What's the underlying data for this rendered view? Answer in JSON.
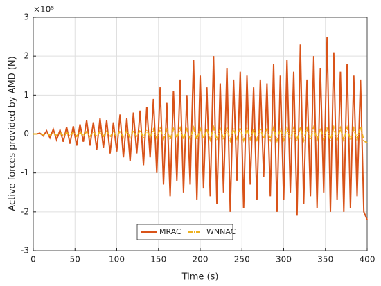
{
  "chart_data": {
    "type": "line",
    "xlabel": "Time (s)",
    "ylabel": "Active forces provided by AMD (N)",
    "y_multiplier": "×10⁵",
    "x": [
      0,
      4,
      8,
      12,
      16,
      20,
      24,
      28,
      32,
      36,
      40,
      44,
      48,
      52,
      56,
      60,
      64,
      68,
      72,
      76,
      80,
      84,
      88,
      92,
      96,
      100,
      104,
      108,
      112,
      116,
      120,
      124,
      128,
      132,
      136,
      140,
      144,
      148,
      152,
      156,
      160,
      164,
      168,
      172,
      176,
      180,
      184,
      188,
      192,
      196,
      200,
      204,
      208,
      212,
      216,
      220,
      224,
      228,
      232,
      236,
      240,
      244,
      248,
      252,
      256,
      260,
      264,
      268,
      272,
      276,
      280,
      284,
      288,
      292,
      296,
      300,
      304,
      308,
      312,
      316,
      320,
      324,
      328,
      332,
      336,
      340,
      344,
      348,
      352,
      356,
      360,
      364,
      368,
      372,
      376,
      380,
      384,
      388,
      392,
      396,
      400
    ],
    "series": [
      {
        "name": "MRAC",
        "color": "#d95319",
        "dash": "none",
        "values": [
          0,
          0,
          0.02,
          -0.05,
          0.08,
          -0.1,
          0.12,
          -0.15,
          0.1,
          -0.2,
          0.18,
          -0.25,
          0.2,
          -0.3,
          0.25,
          -0.2,
          0.35,
          -0.3,
          0.3,
          -0.4,
          0.4,
          -0.35,
          0.35,
          -0.5,
          0.3,
          -0.45,
          0.5,
          -0.6,
          0.4,
          -0.7,
          0.55,
          -0.5,
          0.6,
          -0.8,
          0.7,
          -0.6,
          0.9,
          -1.0,
          1.2,
          -1.3,
          0.8,
          -1.6,
          1.1,
          -1.2,
          1.4,
          -1.5,
          1.0,
          -1.3,
          1.9,
          -1.7,
          1.5,
          -1.4,
          1.2,
          -1.6,
          2.0,
          -1.8,
          1.3,
          -1.5,
          1.7,
          -2.0,
          1.4,
          -1.2,
          1.6,
          -1.9,
          1.5,
          -1.3,
          1.2,
          -1.7,
          1.4,
          -1.1,
          1.3,
          -1.6,
          1.8,
          -2.0,
          1.5,
          -1.7,
          1.9,
          -1.5,
          1.6,
          -2.1,
          2.3,
          -1.8,
          1.4,
          -1.6,
          2.0,
          -1.9,
          1.7,
          -1.5,
          2.5,
          -2.0,
          2.1,
          -1.7,
          1.6,
          -2.0,
          1.8,
          -1.9,
          1.5,
          -1.6,
          1.4,
          -2.0,
          -2.2
        ]
      },
      {
        "name": "WNNAC",
        "color": "#edb120",
        "dash": "6 2 1 2",
        "values": [
          0,
          0,
          0.01,
          -0.02,
          0.02,
          -0.03,
          0.03,
          -0.04,
          0.03,
          -0.05,
          0.04,
          -0.05,
          0.05,
          -0.06,
          0.05,
          -0.05,
          0.06,
          -0.06,
          0.06,
          -0.07,
          0.07,
          -0.06,
          0.07,
          -0.08,
          0.06,
          -0.08,
          0.08,
          -0.09,
          0.08,
          -0.1,
          0.09,
          -0.08,
          0.1,
          -0.1,
          0.1,
          -0.09,
          0.12,
          -0.12,
          0.14,
          -0.13,
          0.11,
          -0.15,
          0.13,
          -0.12,
          0.15,
          -0.14,
          0.12,
          -0.13,
          0.16,
          -0.15,
          0.14,
          -0.13,
          0.12,
          -0.15,
          0.17,
          -0.16,
          0.13,
          -0.14,
          0.15,
          -0.17,
          0.14,
          -0.12,
          0.15,
          -0.16,
          0.14,
          -0.13,
          0.12,
          -0.15,
          0.14,
          -0.12,
          0.13,
          -0.15,
          0.16,
          -0.17,
          0.14,
          -0.15,
          0.16,
          -0.14,
          0.15,
          -0.17,
          0.18,
          -0.16,
          0.14,
          -0.15,
          0.17,
          -0.16,
          0.15,
          -0.14,
          0.18,
          -0.17,
          0.17,
          -0.15,
          0.15,
          -0.17,
          0.16,
          -0.16,
          0.14,
          -0.15,
          0.2,
          -0.18,
          -0.22
        ]
      }
    ],
    "xlim": [
      0,
      400
    ],
    "xticks": [
      0,
      50,
      100,
      150,
      200,
      250,
      300,
      350,
      400
    ],
    "ylim": [
      -3,
      3
    ],
    "yticks": [
      -3,
      -2,
      -1,
      0,
      1,
      2,
      3
    ],
    "grid": true,
    "legend": "south"
  }
}
